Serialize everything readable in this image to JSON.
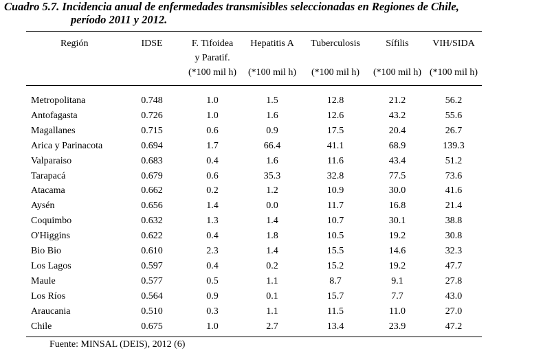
{
  "title": {
    "line1": "Cuadro 5.7. Incidencia anual  de enfermedades transmisibles seleccionadas en Regiones de Chile,",
    "line2": "período 2011 y 2012."
  },
  "columns": [
    {
      "key": "region",
      "lines": [
        "Región"
      ]
    },
    {
      "key": "idse",
      "lines": [
        "IDSE"
      ]
    },
    {
      "key": "tifoidea",
      "lines": [
        "F. Tifoidea",
        "y Paratif.",
        "(*100 mil h)"
      ]
    },
    {
      "key": "hepatitis",
      "lines": [
        "Hepatitis A",
        "",
        "(*100 mil h)"
      ]
    },
    {
      "key": "tuberculosis",
      "lines": [
        "Tuberculosis",
        "",
        "(*100 mil h)"
      ]
    },
    {
      "key": "sifilis",
      "lines": [
        "Sífilis",
        "",
        "(*100 mil h)"
      ]
    },
    {
      "key": "vih",
      "lines": [
        "VIH/SIDA",
        "",
        "(*100 mil h)"
      ]
    }
  ],
  "rows": [
    [
      "Metropolitana",
      "0.748",
      "1.0",
      "1.5",
      "12.8",
      "21.2",
      "56.2"
    ],
    [
      "Antofagasta",
      "0.726",
      "1.0",
      "1.6",
      "12.6",
      "43.2",
      "55.6"
    ],
    [
      "Magallanes",
      "0.715",
      "0.6",
      "0.9",
      "17.5",
      "20.4",
      "26.7"
    ],
    [
      "Arica y Parinacota",
      "0.694",
      "1.7",
      "66.4",
      "41.1",
      "68.9",
      "139.3"
    ],
    [
      "Valparaiso",
      "0.683",
      "0.4",
      "1.6",
      "11.6",
      "43.4",
      "51.2"
    ],
    [
      "Tarapacá",
      "0.679",
      "0.6",
      "35.3",
      "32.8",
      "77.5",
      "73.6"
    ],
    [
      "Atacama",
      "0.662",
      "0.2",
      "1.2",
      "10.9",
      "30.0",
      "41.6"
    ],
    [
      "Aysén",
      "0.656",
      "1.4",
      "0.0",
      "11.7",
      "16.8",
      "21.4"
    ],
    [
      "Coquimbo",
      "0.632",
      "1.3",
      "1.4",
      "10.7",
      "30.1",
      "38.8"
    ],
    [
      "O'Higgins",
      "0.622",
      "0.4",
      "1.8",
      "10.5",
      "19.2",
      "30.8"
    ],
    [
      "Bio Bio",
      "0.610",
      "2.3",
      "1.4",
      "15.5",
      "14.6",
      "32.3"
    ],
    [
      "Los Lagos",
      "0.597",
      "0.4",
      "0.2",
      "15.2",
      "19.2",
      "47.7"
    ],
    [
      "Maule",
      "0.577",
      "0.5",
      "1.1",
      "8.7",
      "9.1",
      "27.8"
    ],
    [
      "Los Ríos",
      "0.564",
      "0.9",
      "0.1",
      "15.7",
      "7.7",
      "43.0"
    ],
    [
      "Araucania",
      "0.510",
      "0.3",
      "1.1",
      "11.5",
      "11.0",
      "27.0"
    ],
    [
      "Chile",
      "0.675",
      "1.0",
      "2.7",
      "13.4",
      "23.9",
      "47.2"
    ]
  ],
  "source": "Fuente: MINSAL (DEIS), 2012 (6)"
}
